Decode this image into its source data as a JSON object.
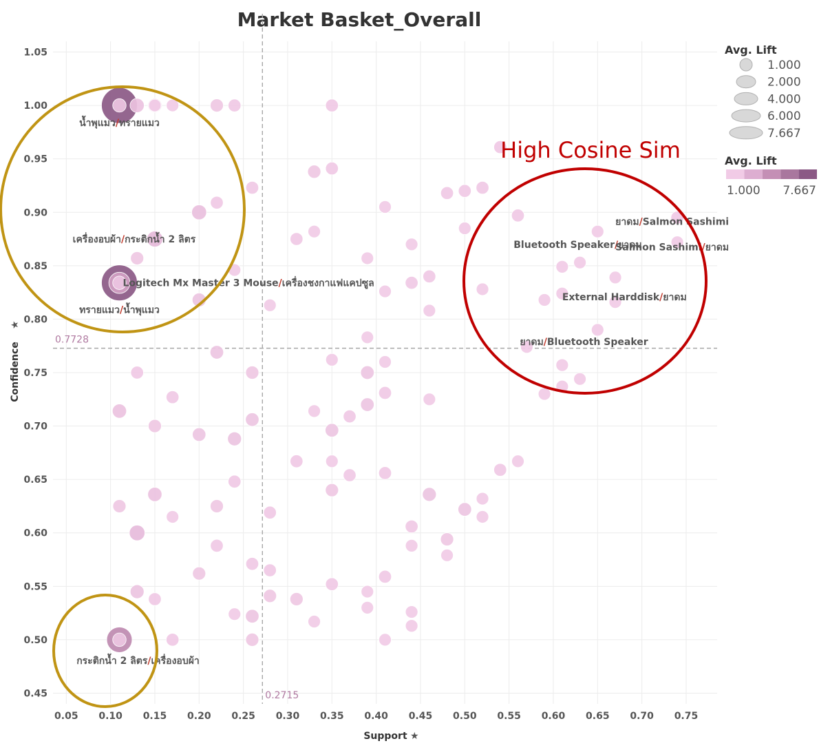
{
  "chart_data": {
    "type": "scatter",
    "title": "Market Basket_Overall",
    "xlabel": "Support",
    "ylabel": "Confidence",
    "xlim": [
      0.035,
      0.785
    ],
    "ylim": [
      0.44,
      1.06
    ],
    "x_ticks": [
      "0.05",
      "0.10",
      "0.15",
      "0.20",
      "0.25",
      "0.30",
      "0.35",
      "0.40",
      "0.45",
      "0.50",
      "0.55",
      "0.60",
      "0.65",
      "0.70",
      "0.75"
    ],
    "y_ticks": [
      "0.45",
      "0.50",
      "0.55",
      "0.60",
      "0.65",
      "0.70",
      "0.75",
      "0.80",
      "0.85",
      "0.90",
      "0.95",
      "1.00",
      "1.05"
    ],
    "grid": true,
    "reference_lines": {
      "x": 0.2715,
      "x_label": "0.2715",
      "y": 0.7728,
      "y_label": "0.7728"
    },
    "size_legend": {
      "title": "Avg. Lift",
      "entries": [
        "1.000",
        "2.000",
        "4.000",
        "6.000",
        "7.667"
      ]
    },
    "color_legend": {
      "title": "Avg. Lift",
      "min_label": "1.000",
      "max_label": "7.667",
      "colors": [
        "#f1cbe6",
        "#ddaed1",
        "#c48fb5",
        "#a9779e",
        "#8b5985"
      ]
    },
    "points": [
      {
        "x": 0.11,
        "y": 1.0,
        "lift": 7.667
      },
      {
        "x": 0.11,
        "y": 1.0,
        "lift": 1.3
      },
      {
        "x": 0.13,
        "y": 1.0,
        "lift": 1.5
      },
      {
        "x": 0.15,
        "y": 1.0,
        "lift": 1.4
      },
      {
        "x": 0.15,
        "y": 1.0,
        "lift": 1.0
      },
      {
        "x": 0.17,
        "y": 1.0,
        "lift": 1.0
      },
      {
        "x": 0.22,
        "y": 1.0,
        "lift": 1.2
      },
      {
        "x": 0.24,
        "y": 1.0,
        "lift": 1.1
      },
      {
        "x": 0.35,
        "y": 1.0,
        "lift": 1.1
      },
      {
        "x": 0.54,
        "y": 0.961,
        "lift": 1.1
      },
      {
        "x": 0.35,
        "y": 0.941,
        "lift": 1.1
      },
      {
        "x": 0.33,
        "y": 0.938,
        "lift": 1.2
      },
      {
        "x": 0.26,
        "y": 0.923,
        "lift": 1.1
      },
      {
        "x": 0.48,
        "y": 0.918,
        "lift": 1.1
      },
      {
        "x": 0.5,
        "y": 0.92,
        "lift": 1.1
      },
      {
        "x": 0.52,
        "y": 0.923,
        "lift": 1.1
      },
      {
        "x": 0.22,
        "y": 0.909,
        "lift": 1.1
      },
      {
        "x": 0.41,
        "y": 0.905,
        "lift": 1.0
      },
      {
        "x": 0.2,
        "y": 0.9,
        "lift": 1.7
      },
      {
        "x": 0.56,
        "y": 0.897,
        "lift": 1.1
      },
      {
        "x": 0.74,
        "y": 0.895,
        "lift": 1.1
      },
      {
        "x": 0.33,
        "y": 0.882,
        "lift": 1.0
      },
      {
        "x": 0.5,
        "y": 0.885,
        "lift": 1.0
      },
      {
        "x": 0.65,
        "y": 0.882,
        "lift": 1.0
      },
      {
        "x": 0.15,
        "y": 0.875,
        "lift": 2.0
      },
      {
        "x": 0.31,
        "y": 0.875,
        "lift": 1.1
      },
      {
        "x": 0.74,
        "y": 0.872,
        "lift": 1.0
      },
      {
        "x": 0.44,
        "y": 0.87,
        "lift": 1.0
      },
      {
        "x": 0.13,
        "y": 0.857,
        "lift": 1.2
      },
      {
        "x": 0.39,
        "y": 0.857,
        "lift": 1.0
      },
      {
        "x": 0.63,
        "y": 0.853,
        "lift": 1.0
      },
      {
        "x": 0.61,
        "y": 0.849,
        "lift": 1.0
      },
      {
        "x": 0.24,
        "y": 0.846,
        "lift": 1.0
      },
      {
        "x": 0.11,
        "y": 0.834,
        "lift": 7.667
      },
      {
        "x": 0.11,
        "y": 0.834,
        "lift": 3.5
      },
      {
        "x": 0.11,
        "y": 0.834,
        "lift": 1.3
      },
      {
        "x": 0.46,
        "y": 0.84,
        "lift": 1.1
      },
      {
        "x": 0.67,
        "y": 0.839,
        "lift": 1.0
      },
      {
        "x": 0.44,
        "y": 0.834,
        "lift": 1.1
      },
      {
        "x": 0.41,
        "y": 0.826,
        "lift": 1.0
      },
      {
        "x": 0.52,
        "y": 0.828,
        "lift": 1.0
      },
      {
        "x": 0.61,
        "y": 0.824,
        "lift": 1.0
      },
      {
        "x": 0.2,
        "y": 0.818,
        "lift": 1.4
      },
      {
        "x": 0.59,
        "y": 0.818,
        "lift": 1.0
      },
      {
        "x": 0.67,
        "y": 0.816,
        "lift": 1.0
      },
      {
        "x": 0.28,
        "y": 0.813,
        "lift": 1.0
      },
      {
        "x": 0.46,
        "y": 0.808,
        "lift": 1.0
      },
      {
        "x": 0.65,
        "y": 0.79,
        "lift": 1.0
      },
      {
        "x": 0.39,
        "y": 0.783,
        "lift": 1.0
      },
      {
        "x": 0.57,
        "y": 0.774,
        "lift": 1.0
      },
      {
        "x": 0.22,
        "y": 0.769,
        "lift": 1.3
      },
      {
        "x": 0.35,
        "y": 0.762,
        "lift": 1.0
      },
      {
        "x": 0.41,
        "y": 0.76,
        "lift": 1.0
      },
      {
        "x": 0.61,
        "y": 0.757,
        "lift": 1.0
      },
      {
        "x": 0.13,
        "y": 0.75,
        "lift": 1.1
      },
      {
        "x": 0.26,
        "y": 0.75,
        "lift": 1.2
      },
      {
        "x": 0.39,
        "y": 0.75,
        "lift": 1.3
      },
      {
        "x": 0.63,
        "y": 0.744,
        "lift": 1.0
      },
      {
        "x": 0.61,
        "y": 0.737,
        "lift": 1.0
      },
      {
        "x": 0.41,
        "y": 0.731,
        "lift": 1.1
      },
      {
        "x": 0.59,
        "y": 0.73,
        "lift": 1.0
      },
      {
        "x": 0.17,
        "y": 0.727,
        "lift": 1.1
      },
      {
        "x": 0.46,
        "y": 0.725,
        "lift": 1.0
      },
      {
        "x": 0.39,
        "y": 0.72,
        "lift": 1.3
      },
      {
        "x": 0.11,
        "y": 0.714,
        "lift": 1.5
      },
      {
        "x": 0.33,
        "y": 0.714,
        "lift": 1.0
      },
      {
        "x": 0.37,
        "y": 0.709,
        "lift": 1.1
      },
      {
        "x": 0.26,
        "y": 0.706,
        "lift": 1.3
      },
      {
        "x": 0.15,
        "y": 0.7,
        "lift": 1.2
      },
      {
        "x": 0.35,
        "y": 0.696,
        "lift": 1.3
      },
      {
        "x": 0.2,
        "y": 0.692,
        "lift": 1.3
      },
      {
        "x": 0.24,
        "y": 0.688,
        "lift": 1.4
      },
      {
        "x": 0.31,
        "y": 0.667,
        "lift": 1.1
      },
      {
        "x": 0.35,
        "y": 0.667,
        "lift": 1.0
      },
      {
        "x": 0.56,
        "y": 0.667,
        "lift": 1.0
      },
      {
        "x": 0.54,
        "y": 0.659,
        "lift": 1.1
      },
      {
        "x": 0.41,
        "y": 0.656,
        "lift": 1.1
      },
      {
        "x": 0.37,
        "y": 0.654,
        "lift": 1.1
      },
      {
        "x": 0.24,
        "y": 0.648,
        "lift": 1.1
      },
      {
        "x": 0.35,
        "y": 0.64,
        "lift": 1.2
      },
      {
        "x": 0.15,
        "y": 0.636,
        "lift": 1.5
      },
      {
        "x": 0.46,
        "y": 0.636,
        "lift": 1.4
      },
      {
        "x": 0.52,
        "y": 0.632,
        "lift": 1.0
      },
      {
        "x": 0.11,
        "y": 0.625,
        "lift": 1.2
      },
      {
        "x": 0.22,
        "y": 0.625,
        "lift": 1.2
      },
      {
        "x": 0.5,
        "y": 0.622,
        "lift": 1.3
      },
      {
        "x": 0.28,
        "y": 0.619,
        "lift": 1.1
      },
      {
        "x": 0.17,
        "y": 0.615,
        "lift": 1.0
      },
      {
        "x": 0.52,
        "y": 0.615,
        "lift": 1.0
      },
      {
        "x": 0.44,
        "y": 0.606,
        "lift": 1.1
      },
      {
        "x": 0.13,
        "y": 0.6,
        "lift": 1.9
      },
      {
        "x": 0.48,
        "y": 0.594,
        "lift": 1.2
      },
      {
        "x": 0.22,
        "y": 0.588,
        "lift": 1.1
      },
      {
        "x": 0.44,
        "y": 0.588,
        "lift": 1.0
      },
      {
        "x": 0.48,
        "y": 0.579,
        "lift": 1.0
      },
      {
        "x": 0.26,
        "y": 0.571,
        "lift": 1.1
      },
      {
        "x": 0.28,
        "y": 0.565,
        "lift": 1.1
      },
      {
        "x": 0.2,
        "y": 0.562,
        "lift": 1.2
      },
      {
        "x": 0.41,
        "y": 0.559,
        "lift": 1.1
      },
      {
        "x": 0.35,
        "y": 0.552,
        "lift": 1.1
      },
      {
        "x": 0.13,
        "y": 0.545,
        "lift": 1.4
      },
      {
        "x": 0.39,
        "y": 0.545,
        "lift": 1.0
      },
      {
        "x": 0.28,
        "y": 0.541,
        "lift": 1.2
      },
      {
        "x": 0.15,
        "y": 0.538,
        "lift": 1.1
      },
      {
        "x": 0.31,
        "y": 0.538,
        "lift": 1.2
      },
      {
        "x": 0.39,
        "y": 0.53,
        "lift": 1.0
      },
      {
        "x": 0.44,
        "y": 0.526,
        "lift": 1.0
      },
      {
        "x": 0.24,
        "y": 0.524,
        "lift": 1.0
      },
      {
        "x": 0.26,
        "y": 0.522,
        "lift": 1.3
      },
      {
        "x": 0.33,
        "y": 0.517,
        "lift": 1.0
      },
      {
        "x": 0.44,
        "y": 0.513,
        "lift": 1.0
      },
      {
        "x": 0.11,
        "y": 0.5,
        "lift": 4.7
      },
      {
        "x": 0.11,
        "y": 0.5,
        "lift": 1.3
      },
      {
        "x": 0.17,
        "y": 0.5,
        "lift": 1.1
      },
      {
        "x": 0.26,
        "y": 0.5,
        "lift": 1.2
      },
      {
        "x": 0.41,
        "y": 0.5,
        "lift": 1.0
      }
    ],
    "labels": [
      {
        "x": 0.11,
        "y": 1.0,
        "a": "น้ำพุแมว",
        "b": "ทรายแมว",
        "anchor": "middle",
        "dx": 0,
        "dy": 30
      },
      {
        "x": 0.15,
        "y": 0.857,
        "a": "เครื่องอบผ้า",
        "b": "กระติกน้ำ 2 ลิตร",
        "anchor": "middle",
        "dx": -30,
        "dy": -23
      },
      {
        "x": 0.11,
        "y": 0.834,
        "a": "Logitech Mx Master 3 Mouse",
        "b": "เครื่องชงกาแฟแคปซูล",
        "anchor": "start",
        "dx": 5,
        "dy": 5
      },
      {
        "x": 0.11,
        "y": 0.834,
        "a": "ทรายแมว",
        "b": "น้ำพุแมว",
        "anchor": "middle",
        "dx": 0,
        "dy": 44
      },
      {
        "x": 0.11,
        "y": 0.5,
        "a": "กระติกน้ำ 2 ลิตร",
        "b": "เครื่องอบผ้า",
        "anchor": "middle",
        "dx": 27,
        "dy": 35
      },
      {
        "x": 0.74,
        "y": 0.872,
        "a": "ยาดม",
        "b": "Salmon Sashimi",
        "anchor": "end",
        "dx": 75,
        "dy": -25
      },
      {
        "x": 0.63,
        "y": 0.853,
        "a": "Bluetooth Speaker",
        "b": "ยาดม",
        "anchor": "end",
        "dx": 90,
        "dy": -21
      },
      {
        "x": 0.74,
        "y": 0.872,
        "a": "Salmon Sashimi",
        "b": "ยาดม",
        "anchor": "end",
        "dx": 75,
        "dy": 12
      },
      {
        "x": 0.61,
        "y": 0.824,
        "a": "External Harddisk",
        "b": "ยาดม",
        "anchor": "start",
        "dx": 0,
        "dy": 10
      },
      {
        "x": 0.57,
        "y": 0.774,
        "a": "ยาดม",
        "b": "Bluetooth Speaker",
        "anchor": "start",
        "dx": -10,
        "dy": -3
      }
    ]
  },
  "annotations": {
    "high_cosine_label": "High Cosine Sim",
    "left_circle_color": "#c09414",
    "right_circle_color": "#c00000"
  }
}
